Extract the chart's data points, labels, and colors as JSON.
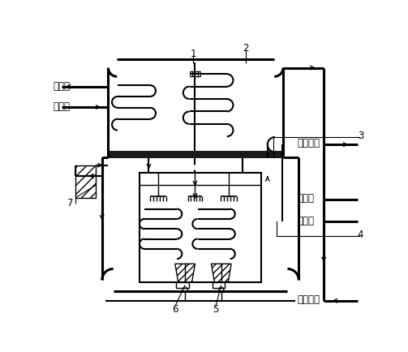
{
  "bg_color": "#ffffff",
  "lw_main": 2.2,
  "lw_med": 1.5,
  "lw_thin": 1.0,
  "labels": {
    "hot_out": "热水出",
    "hot_in": "热水进",
    "cool_water_out": "冷却水出",
    "cold_out": "冷水出",
    "cold_in": "冷水进",
    "cool_water_in": "冷却水进",
    "num1": "1",
    "num2": "2",
    "num3": "3",
    "num4": "4",
    "num5": "5",
    "num6": "6",
    "num7": "7"
  },
  "font_size": 8.5
}
